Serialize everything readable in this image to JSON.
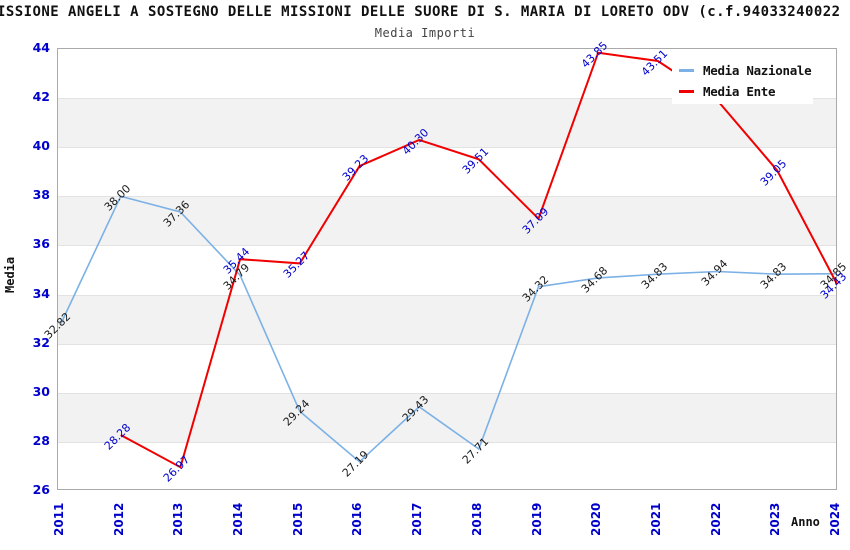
{
  "page": {
    "title": "ISSIONE ANGELI A SOSTEGNO DELLE MISSIONI DELLE SUORE DI S. MARIA DI LORETO ODV (c.f.94033240022",
    "subtitle": "Media Importi"
  },
  "chart_data": {
    "type": "line",
    "title": "ISSIONE ANGELI A SOSTEGNO DELLE MISSIONI DELLE SUORE DI S. MARIA DI LORETO ODV (c.f.94033240022",
    "subtitle": "Media Importi",
    "xlabel": "Anno",
    "ylabel": "Media",
    "ylim": [
      26,
      44
    ],
    "yticks": [
      26,
      28,
      30,
      32,
      34,
      36,
      38,
      40,
      42,
      44
    ],
    "grid": "horizontal-bands",
    "legend_position": "top-right",
    "categories": [
      "2011",
      "2012",
      "2013",
      "2014",
      "2015",
      "2016",
      "2017",
      "2018",
      "2019",
      "2020",
      "2021",
      "2022",
      "2023",
      "2024"
    ],
    "series": [
      {
        "name": "Media Nazionale",
        "color": "#7cb1e6",
        "label_color": "#1a1a1a",
        "line_width": 1.6,
        "values": [
          32.82,
          38.0,
          37.36,
          34.79,
          29.24,
          27.19,
          29.43,
          27.71,
          34.32,
          34.68,
          34.83,
          34.94,
          34.83,
          34.85
        ],
        "point_labels": [
          "32.82",
          "38.00",
          "37.36",
          "34.79",
          "29.24",
          "27.19",
          "29.43",
          "27.71",
          "34.32",
          "34.68",
          "34.83",
          "34.94",
          "34.83",
          "34.85"
        ]
      },
      {
        "name": "Media Ente",
        "color": "#f10000",
        "label_color": "#0000cc",
        "line_width": 2,
        "values": [
          null,
          28.28,
          26.97,
          35.44,
          35.27,
          39.23,
          40.3,
          39.51,
          37.09,
          43.85,
          43.51,
          41.9,
          39.05,
          34.43
        ],
        "point_labels": [
          "",
          "28.28",
          "26.97",
          "35.44",
          "35.27",
          "39.23",
          "40.30",
          "39.51",
          "37.09",
          "43.85",
          "43.51",
          "",
          "39.05",
          "34.43"
        ]
      }
    ],
    "colors": {
      "axis_text": "#0000cc",
      "band": "#f2f2f2",
      "gridline": "#e2e2e2",
      "plot_border": "#aaaaaa"
    }
  }
}
